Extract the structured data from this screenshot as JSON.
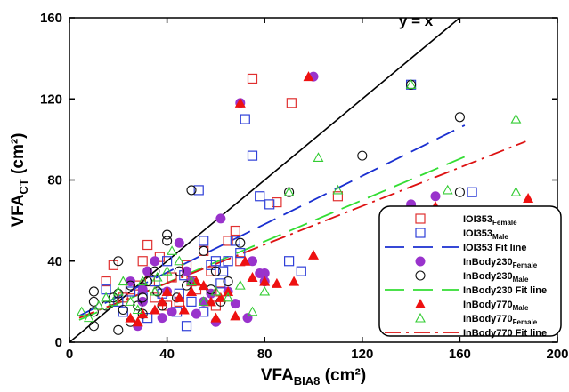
{
  "chart_data": {
    "type": "scatter",
    "xlabel": {
      "base": "VFA",
      "sub": "BIA8",
      "unit": " (cm²)"
    },
    "ylabel": {
      "base": "VFA",
      "sub": "CT",
      "unit": " (cm²)"
    },
    "xlim": [
      0,
      200
    ],
    "ylim": [
      0,
      160
    ],
    "xticks": [
      "0",
      "40",
      "80",
      "120",
      "160",
      "200"
    ],
    "yticks": [
      "0",
      "40",
      "80",
      "120",
      "160"
    ],
    "xtick_values": [
      0,
      40,
      80,
      120,
      160,
      200
    ],
    "ytick_values": [
      0,
      40,
      80,
      120,
      160
    ],
    "grid": false,
    "legend_position": "bottom-right",
    "annotation": {
      "text": "y = x",
      "x": 135,
      "y": 156
    },
    "identity_line": [
      [
        0,
        0
      ],
      [
        160,
        160
      ]
    ],
    "series": [
      {
        "name": "IOI353",
        "subscript": "Female",
        "marker": "square-open",
        "color": "#e03030",
        "points": [
          [
            28,
            28
          ],
          [
            30,
            40
          ],
          [
            32,
            48
          ],
          [
            33,
            30
          ],
          [
            35,
            22
          ],
          [
            40,
            18
          ],
          [
            45,
            20
          ],
          [
            48,
            38
          ],
          [
            50,
            30
          ],
          [
            55,
            45
          ],
          [
            58,
            35
          ],
          [
            62,
            25
          ],
          [
            65,
            50
          ],
          [
            68,
            55
          ],
          [
            75,
            130
          ],
          [
            91,
            118
          ],
          [
            110,
            72
          ],
          [
            18,
            38
          ],
          [
            22,
            22
          ],
          [
            15,
            30
          ],
          [
            25,
            26
          ],
          [
            42,
            32
          ],
          [
            52,
            26
          ],
          [
            60,
            18
          ],
          [
            70,
            40
          ],
          [
            85,
            69
          ],
          [
            37,
            42
          ]
        ]
      },
      {
        "name": "IOI353",
        "subscript": "Male",
        "marker": "square-open",
        "color": "#2f3fd8",
        "points": [
          [
            15,
            26
          ],
          [
            20,
            20
          ],
          [
            25,
            25
          ],
          [
            30,
            22
          ],
          [
            35,
            30
          ],
          [
            38,
            24
          ],
          [
            40,
            40
          ],
          [
            45,
            24
          ],
          [
            48,
            8
          ],
          [
            50,
            20
          ],
          [
            53,
            75
          ],
          [
            55,
            50
          ],
          [
            58,
            38
          ],
          [
            60,
            40
          ],
          [
            63,
            35
          ],
          [
            65,
            40
          ],
          [
            68,
            50
          ],
          [
            72,
            110
          ],
          [
            75,
            92
          ],
          [
            78,
            72
          ],
          [
            82,
            68
          ],
          [
            90,
            40
          ],
          [
            95,
            35
          ],
          [
            165,
            74
          ],
          [
            140,
            127
          ],
          [
            55,
            15
          ],
          [
            62,
            29
          ],
          [
            70,
            44
          ],
          [
            22,
            15
          ],
          [
            32,
            12
          ],
          [
            44,
            15
          ],
          [
            47,
            33
          ]
        ]
      },
      {
        "name": "IOI353 Fit line",
        "line": true,
        "dash": "22,10",
        "color": "#1a2fd0",
        "points": [
          [
            4,
            13
          ],
          [
            162,
            107
          ]
        ]
      },
      {
        "name": "InBody230",
        "subscript": "Female",
        "marker": "circle-filled",
        "color": "#9933cc",
        "points": [
          [
            25,
            30
          ],
          [
            28,
            8
          ],
          [
            30,
            20
          ],
          [
            32,
            35
          ],
          [
            35,
            40
          ],
          [
            40,
            25
          ],
          [
            42,
            15
          ],
          [
            45,
            49
          ],
          [
            48,
            35
          ],
          [
            50,
            30
          ],
          [
            55,
            20
          ],
          [
            60,
            10
          ],
          [
            62,
            61
          ],
          [
            65,
            25
          ],
          [
            70,
            118
          ],
          [
            75,
            40
          ],
          [
            78,
            34
          ],
          [
            80,
            34
          ],
          [
            80,
            30
          ],
          [
            100,
            131
          ],
          [
            140,
            68
          ],
          [
            150,
            72
          ],
          [
            38,
            12
          ],
          [
            52,
            14
          ],
          [
            58,
            24
          ],
          [
            68,
            19
          ],
          [
            73,
            12
          ],
          [
            30,
            26
          ]
        ]
      },
      {
        "name": "InBody230",
        "subscript": "Male",
        "marker": "circle-open",
        "color": "#111111",
        "points": [
          [
            10,
            8
          ],
          [
            10,
            15
          ],
          [
            10,
            20
          ],
          [
            10,
            25
          ],
          [
            15,
            18
          ],
          [
            18,
            22
          ],
          [
            20,
            24
          ],
          [
            20,
            40
          ],
          [
            22,
            16
          ],
          [
            25,
            28
          ],
          [
            28,
            18
          ],
          [
            30,
            14
          ],
          [
            30,
            22
          ],
          [
            35,
            35
          ],
          [
            38,
            18
          ],
          [
            40,
            53
          ],
          [
            40,
            50
          ],
          [
            45,
            35
          ],
          [
            50,
            75
          ],
          [
            55,
            45
          ],
          [
            60,
            35
          ],
          [
            65,
            30
          ],
          [
            70,
            49
          ],
          [
            90,
            74
          ],
          [
            120,
            92
          ],
          [
            140,
            127
          ],
          [
            160,
            111
          ],
          [
            160,
            74
          ],
          [
            20,
            6
          ],
          [
            25,
            10
          ],
          [
            32,
            30
          ],
          [
            36,
            25
          ],
          [
            44,
            22
          ],
          [
            48,
            28
          ],
          [
            58,
            26
          ],
          [
            62,
            20
          ]
        ]
      },
      {
        "name": "InBody230 Fit line",
        "line": true,
        "dash": "22,10",
        "color": "#33dd33",
        "points": [
          [
            4,
            11
          ],
          [
            165,
            93
          ]
        ]
      },
      {
        "name": "InBody770",
        "subscript": "Male",
        "marker": "triangle-filled",
        "color": "#ee1111",
        "points": [
          [
            28,
            10
          ],
          [
            30,
            14
          ],
          [
            35,
            16
          ],
          [
            38,
            20
          ],
          [
            40,
            25
          ],
          [
            45,
            22
          ],
          [
            50,
            25
          ],
          [
            52,
            30
          ],
          [
            55,
            28
          ],
          [
            58,
            20
          ],
          [
            62,
            22
          ],
          [
            65,
            25
          ],
          [
            68,
            13
          ],
          [
            70,
            118
          ],
          [
            72,
            40
          ],
          [
            75,
            32
          ],
          [
            80,
            30
          ],
          [
            85,
            29
          ],
          [
            92,
            30
          ],
          [
            100,
            43
          ],
          [
            98,
            131
          ],
          [
            150,
            67
          ],
          [
            188,
            71
          ],
          [
            60,
            12
          ],
          [
            47,
            16
          ],
          [
            25,
            12
          ]
        ]
      },
      {
        "name": "InBody770",
        "subscript": "Female",
        "marker": "triangle-open",
        "color": "#33cc33",
        "points": [
          [
            5,
            15
          ],
          [
            8,
            12
          ],
          [
            12,
            18
          ],
          [
            15,
            22
          ],
          [
            18,
            20
          ],
          [
            20,
            25
          ],
          [
            22,
            30
          ],
          [
            25,
            20
          ],
          [
            30,
            30
          ],
          [
            35,
            25
          ],
          [
            40,
            35
          ],
          [
            45,
            40
          ],
          [
            50,
            30
          ],
          [
            55,
            20
          ],
          [
            60,
            25
          ],
          [
            65,
            22
          ],
          [
            70,
            28
          ],
          [
            75,
            15
          ],
          [
            80,
            25
          ],
          [
            90,
            74
          ],
          [
            102,
            91
          ],
          [
            110,
            75
          ],
          [
            140,
            127
          ],
          [
            155,
            75
          ],
          [
            183,
            110
          ],
          [
            183,
            74
          ],
          [
            42,
            45
          ],
          [
            28,
            16
          ],
          [
            36,
            32
          ]
        ]
      },
      {
        "name": "InBody770 Fit line",
        "line": true,
        "dash": "18,6,3,6",
        "color": "#dd1111",
        "points": [
          [
            4,
            12
          ],
          [
            187,
            99
          ]
        ]
      }
    ]
  }
}
